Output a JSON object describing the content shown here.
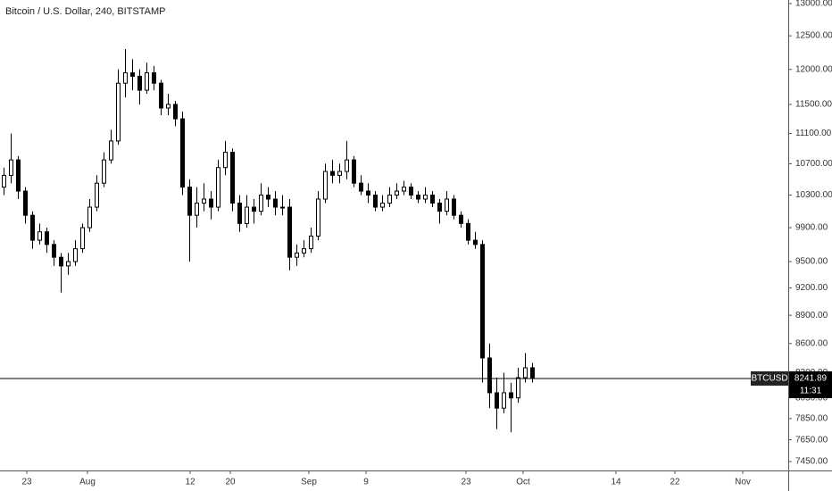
{
  "chart_data": {
    "type": "candlestick",
    "title": "Bitcoin / U.S. Dollar, 240, BITSTAMP",
    "log_scale": true,
    "color": "#000000",
    "ylim": [
      7370,
      13056
    ],
    "yticks": [
      {
        "value": 13000,
        "label": "13000.00"
      },
      {
        "value": 12500,
        "label": "12500.00"
      },
      {
        "value": 12000,
        "label": "12000.00"
      },
      {
        "value": 11500,
        "label": "11500.00"
      },
      {
        "value": 11100,
        "label": "11100.00"
      },
      {
        "value": 10700,
        "label": "10700.00"
      },
      {
        "value": 10300,
        "label": "10300.00"
      },
      {
        "value": 9900,
        "label": "9900.00"
      },
      {
        "value": 9500,
        "label": "9500.00"
      },
      {
        "value": 9200,
        "label": "9200.00"
      },
      {
        "value": 8900,
        "label": "8900.00"
      },
      {
        "value": 8600,
        "label": "8600.00"
      },
      {
        "value": 8300,
        "label": "8300.00"
      },
      {
        "value": 8050,
        "label": "8050.00"
      },
      {
        "value": 7850,
        "label": "7850.00"
      },
      {
        "value": 7650,
        "label": "7650.00"
      },
      {
        "value": 7450,
        "label": "7450.00"
      }
    ],
    "x_labels": [
      "23",
      "Aug",
      "12",
      "20",
      "Sep",
      "9",
      "23",
      "Oct",
      "14",
      "22",
      "Nov"
    ],
    "open": [
      10400,
      10550,
      10750,
      10350,
      10050,
      9750,
      9850,
      9700,
      9550,
      9450,
      9500,
      9650,
      9900,
      10150,
      10450,
      10750,
      11000,
      11800,
      11950,
      11900,
      11700,
      11950,
      11800,
      11450,
      11500,
      11300,
      10400,
      10050,
      10200,
      10250,
      10150,
      10650,
      10850,
      10200,
      9950,
      10150,
      10100,
      10300,
      10250,
      10150,
      10150,
      9550,
      9600,
      9650,
      9800,
      10250,
      10600,
      10550,
      10600,
      10750,
      10450,
      10350,
      10300,
      10150,
      10200,
      10300,
      10350,
      10400,
      10300,
      10250,
      10300,
      10200,
      10100,
      10250,
      10050,
      9950,
      9750,
      9700,
      8450,
      8100,
      7950,
      8100,
      8050,
      8250,
      8350
    ],
    "high": [
      10650,
      11100,
      10800,
      10400,
      10100,
      9950,
      9900,
      9750,
      9600,
      9600,
      9750,
      9950,
      10250,
      10550,
      10850,
      11150,
      12000,
      12300,
      12150,
      12000,
      12100,
      12050,
      11850,
      11650,
      11550,
      11400,
      10500,
      10400,
      10450,
      10350,
      10750,
      11000,
      10900,
      10300,
      10300,
      10250,
      10450,
      10400,
      10350,
      10300,
      10250,
      9700,
      9750,
      9900,
      10350,
      10700,
      10750,
      10700,
      11000,
      10800,
      10550,
      10450,
      10350,
      10300,
      10400,
      10450,
      10480,
      10450,
      10350,
      10400,
      10350,
      10250,
      10350,
      10300,
      10100,
      10000,
      9850,
      9750,
      8600,
      8250,
      8300,
      8200,
      8350,
      8500,
      8400
    ],
    "low": [
      10300,
      10450,
      10250,
      9950,
      9650,
      9700,
      9600,
      9450,
      9150,
      9350,
      9450,
      9600,
      9850,
      10100,
      10400,
      10700,
      10950,
      11600,
      11700,
      11500,
      11650,
      11700,
      11350,
      11350,
      11200,
      10300,
      9500,
      9900,
      10100,
      10000,
      10100,
      10550,
      10100,
      9850,
      9900,
      9950,
      10050,
      10150,
      10050,
      10050,
      9400,
      9450,
      9550,
      9600,
      9750,
      10200,
      10450,
      10450,
      10500,
      10400,
      10300,
      10200,
      10100,
      10100,
      10150,
      10250,
      10300,
      10250,
      10200,
      10200,
      10150,
      9950,
      10050,
      10000,
      9900,
      9700,
      9650,
      8200,
      7950,
      7750,
      7900,
      7720,
      8000,
      8200,
      8200
    ],
    "close": [
      10550,
      10750,
      10350,
      10050,
      9750,
      9850,
      9700,
      9550,
      9450,
      9500,
      9650,
      9900,
      10150,
      10450,
      10750,
      11000,
      11800,
      11950,
      11900,
      11700,
      11950,
      11800,
      11450,
      11500,
      11300,
      10400,
      10050,
      10200,
      10250,
      10150,
      10650,
      10850,
      10200,
      9950,
      10150,
      10100,
      10300,
      10250,
      10150,
      10150,
      9550,
      9600,
      9650,
      9800,
      10250,
      10600,
      10550,
      10600,
      10750,
      10450,
      10350,
      10300,
      10150,
      10200,
      10300,
      10350,
      10400,
      10300,
      10250,
      10300,
      10200,
      10100,
      10250,
      10050,
      9950,
      9750,
      9700,
      8450,
      8100,
      7950,
      8100,
      8050,
      8250,
      8350,
      8241.89
    ],
    "last_price": {
      "symbol": "BTCUSD",
      "value": 8241.89,
      "label": "8241.89",
      "countdown": "11:31"
    }
  }
}
